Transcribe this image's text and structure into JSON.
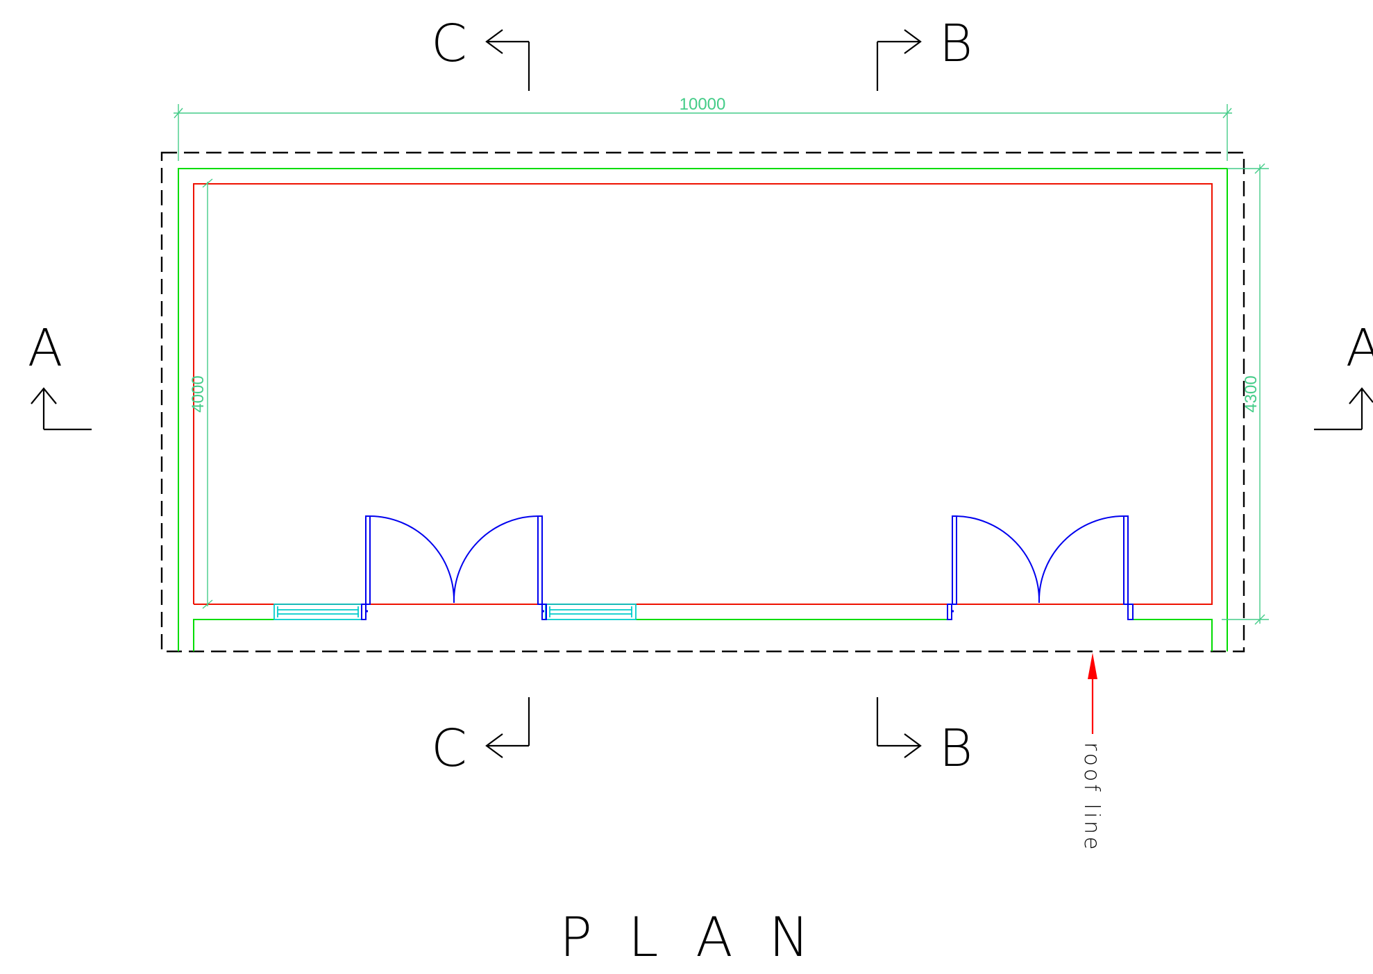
{
  "drawing": {
    "title": "PLAN",
    "dimensions": {
      "overall_length": "10000",
      "inner_width": "4000",
      "outer_width": "4300"
    },
    "section_markers": {
      "a_left": "A",
      "a_right": "A",
      "b_top": "B",
      "b_bottom": "B",
      "c_top": "C",
      "c_bottom": "C"
    },
    "annotation": {
      "roof_line": "roof line"
    }
  },
  "colors": {
    "roof_line": "#000000",
    "outer_wall": "#00dd00",
    "inner_wall": "#ee1100",
    "doors": "#0000ee",
    "windows": "#00cccc",
    "dimensions": "#44cc88",
    "arrow": "#ff0000"
  }
}
